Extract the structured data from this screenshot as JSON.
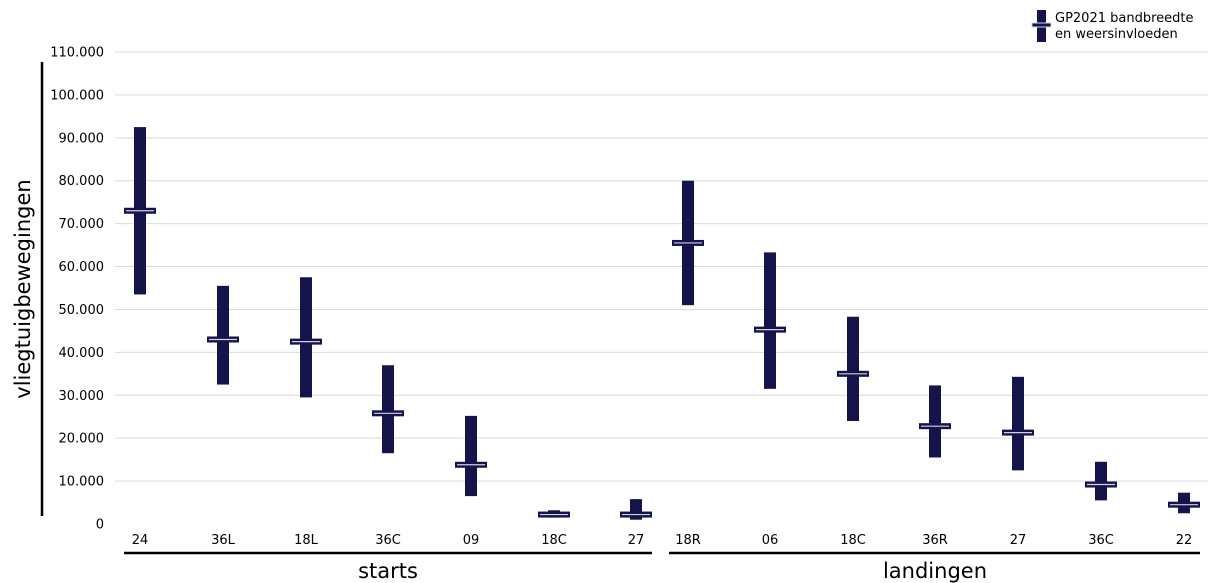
{
  "legend": {
    "line1": "GP2021 bandbreedte",
    "line2": "en weersinvloeden"
  },
  "chart_data": {
    "type": "range-bar",
    "ylabel": "vliegtuigbewegingen",
    "ylim": [
      0,
      110000
    ],
    "yticks": [
      0,
      10000,
      20000,
      30000,
      40000,
      50000,
      60000,
      70000,
      80000,
      90000,
      100000,
      110000
    ],
    "ytick_labels": [
      "0",
      "10.000",
      "20.000",
      "30.000",
      "40.000",
      "50.000",
      "60.000",
      "70.000",
      "80.000",
      "90.000",
      "100.000",
      "110.000"
    ],
    "grid": true,
    "legend_position": "top-right",
    "bar_color": "#14144a",
    "marker_color": "#d0d0e0",
    "groups": [
      {
        "name": "starts",
        "categories": [
          "24",
          "36L",
          "18L",
          "36C",
          "09",
          "18C",
          "27"
        ],
        "min": [
          53500,
          32500,
          29500,
          16500,
          6500,
          1500,
          1000
        ],
        "max": [
          92500,
          55500,
          57500,
          37000,
          25200,
          3200,
          5800
        ],
        "value": [
          73000,
          43000,
          42500,
          25800,
          13800,
          2200,
          2200
        ]
      },
      {
        "name": "landingen",
        "categories": [
          "18R",
          "06",
          "18C",
          "36R",
          "27",
          "36C",
          "22"
        ],
        "min": [
          51000,
          31500,
          24000,
          15500,
          12500,
          5500,
          2500
        ],
        "max": [
          80000,
          63300,
          48300,
          32300,
          34300,
          14500,
          7300
        ],
        "value": [
          65500,
          45300,
          35000,
          22800,
          21300,
          9200,
          4500
        ]
      }
    ]
  }
}
